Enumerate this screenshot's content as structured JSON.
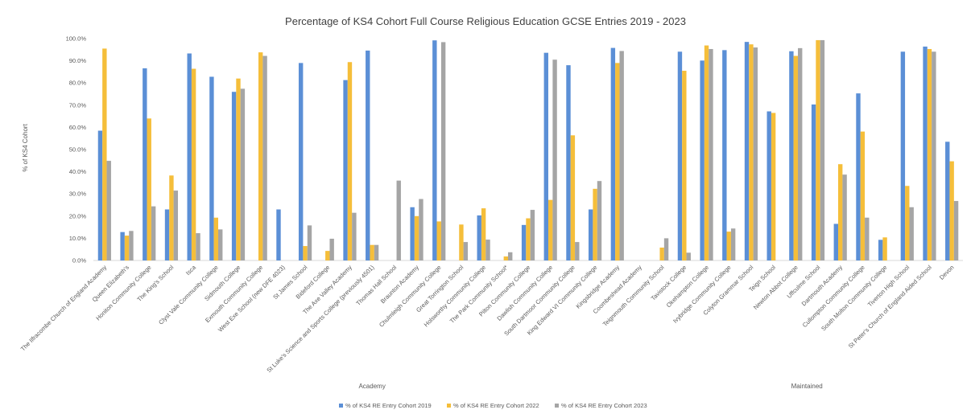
{
  "chart_data": {
    "type": "bar",
    "title": "Percentage of KS4 Cohort Full Course Religious Education GCSE Entries 2019 - 2023",
    "ylabel": "% of KS4 Cohort",
    "ylim": [
      0,
      100
    ],
    "ytick_labels": [
      "0.0%",
      "10.0%",
      "20.0%",
      "30.0%",
      "40.0%",
      "50.0%",
      "60.0%",
      "70.0%",
      "80.0%",
      "90.0%",
      "100.0%"
    ],
    "grid": false,
    "legend_position": "bottom",
    "groups": [
      {
        "label": "Academy",
        "start": 0,
        "end": 24
      },
      {
        "label": "Maintained",
        "start": 25,
        "end": 38
      }
    ],
    "categories": [
      "The Ilfracombe Church of England Academy",
      "Queen Elizabeth's",
      "Honiton Community College",
      "The King's School",
      "Isca",
      "Clyst Vale Community College",
      "Sidmouth College",
      "Exmouth Community College",
      "West Exe School (new DFE 4023)",
      "St James School",
      "Bideford College",
      "The Axe Valley Academy",
      "St Luke's Science and Sports College (previously 4501)",
      "Thomas Hall School",
      "Braunton Academy",
      "Chulmleigh Community College",
      "Great Torrington School",
      "Holsworthy Community College",
      "The Park Community School*",
      "Pilton Community College",
      "Dawlish Community College",
      "South Dartmoor Community College",
      "King Edward VI Community College",
      "Kingsbridge Academy",
      "Coombeshead Academy",
      "Teignmouth Community School",
      "Tavistock College",
      "Okehampton College",
      "Ivybridge Community College",
      "Colyton Grammar School",
      "Teign School",
      "Newton Abbot College",
      "Uffculme School",
      "Dartmouth Academy",
      "Cullompton Community College",
      "South Molton Community College",
      "Tiverton High School",
      "St Peter's Church of England Aided School",
      "Devon"
    ],
    "series": [
      {
        "name": "% of KS4 RE Entry Cohort 2019",
        "color": "#5B8FD6",
        "values": [
          58.5,
          12.8,
          86.6,
          23.0,
          93.3,
          82.8,
          76.0,
          0,
          23.0,
          89.0,
          0,
          81.3,
          94.6,
          0,
          24.0,
          99.2,
          0,
          20.3,
          0,
          16.0,
          93.6,
          88.0,
          23.0,
          95.8,
          0,
          0,
          94.1,
          90.1,
          94.8,
          98.5,
          67.2,
          94.3,
          70.3,
          16.5,
          75.3,
          9.3,
          94.1,
          96.4,
          53.5
        ]
      },
      {
        "name": "% of KS4 RE Entry Cohort 2022",
        "color": "#F5BE3A",
        "values": [
          95.5,
          11.2,
          64.0,
          38.3,
          86.4,
          19.3,
          82.0,
          93.8,
          0,
          6.5,
          4.3,
          89.4,
          7.0,
          0,
          20.0,
          17.6,
          16.2,
          23.5,
          1.8,
          19.0,
          27.3,
          56.4,
          32.3,
          89.0,
          0,
          5.8,
          85.5,
          96.9,
          13.0,
          97.4,
          66.5,
          92.2,
          99.3,
          43.4,
          58.1,
          10.4,
          33.6,
          95.3,
          44.7
        ]
      },
      {
        "name": "% of KS4 RE Entry Cohort 2023",
        "color": "#A5A5A5",
        "values": [
          44.9,
          13.3,
          24.4,
          31.5,
          12.3,
          14.0,
          77.4,
          92.2,
          0,
          15.8,
          9.8,
          21.5,
          7.0,
          36.0,
          27.7,
          98.4,
          8.3,
          9.4,
          3.7,
          22.8,
          90.5,
          8.3,
          35.8,
          94.4,
          0,
          10.0,
          3.5,
          95.3,
          14.4,
          96.0,
          0,
          95.7,
          99.3,
          38.7,
          19.3,
          0,
          24.0,
          94.1,
          26.8
        ]
      }
    ]
  }
}
